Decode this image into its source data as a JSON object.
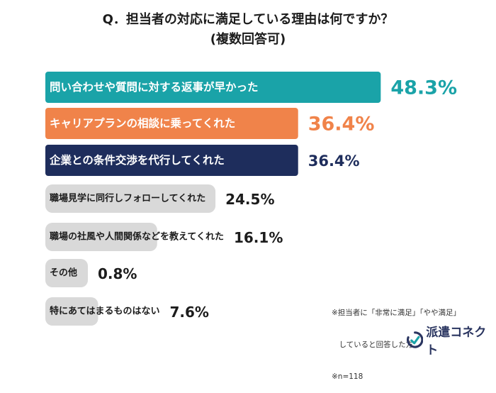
{
  "title": {
    "line1": "Q．担当者の対応に満足している理由は何ですか？",
    "line2": "(複数回答可)"
  },
  "chart_data": {
    "type": "bar",
    "orientation": "horizontal",
    "categories": [
      "問い合わせや質問に対する返事が早かった",
      "キャリアプランの相談に乗ってくれた",
      "企業との条件交渉を代行してくれた",
      "職場見学に同行しフォローしてくれた",
      "職場の社風や人間関係などを教えてくれた",
      "その他",
      "特にあてはまるものはない"
    ],
    "values": [
      48.3,
      36.4,
      36.4,
      24.5,
      16.1,
      0.8,
      7.6
    ],
    "value_labels": [
      "48.3%",
      "36.4%",
      "36.4%",
      "24.5%",
      "16.1%",
      "0.8%",
      "7.6%"
    ],
    "bar_colors": [
      "#1aa3a8",
      "#f0834a",
      "#1e2d5c",
      "#d9d9d9",
      "#d9d9d9",
      "#d9d9d9",
      "#d9d9d9"
    ],
    "label_colors": [
      "#ffffff",
      "#ffffff",
      "#ffffff",
      "#1c1c1c",
      "#1c1c1c",
      "#1c1c1c",
      "#1c1c1c"
    ],
    "value_colors": [
      "#1aa3a8",
      "#f0834a",
      "#1e2d5c",
      "#1c1c1c",
      "#1c1c1c",
      "#1c1c1c",
      "#1c1c1c"
    ],
    "xlim": [
      0,
      50
    ]
  },
  "note": {
    "line1": "※担当者に「非常に満足」「やや満足」",
    "line2": "　していると回答した方",
    "line3": "※n=118"
  },
  "logo": {
    "text": "派遣コネクト",
    "color": "#2a3560"
  }
}
